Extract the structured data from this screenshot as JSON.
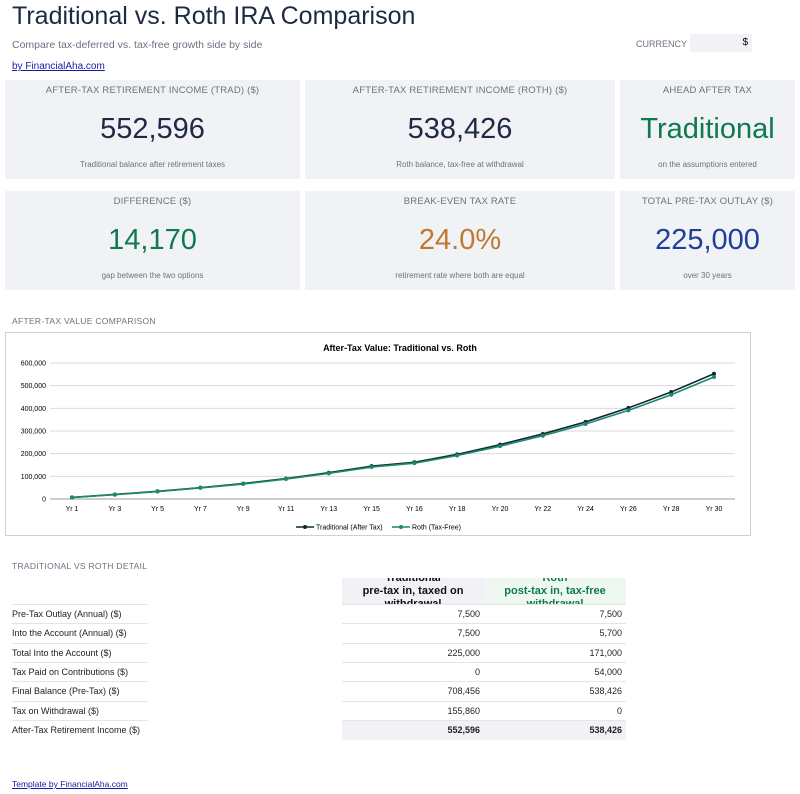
{
  "header": {
    "title": "Traditional vs. Roth IRA Comparison",
    "subtitle": "Compare tax-deferred vs. tax-free growth side by side",
    "link": "by FinancialAha.com",
    "currency_label": "CURRENCY",
    "currency_value": "$"
  },
  "cards": [
    {
      "label": "AFTER-TAX RETIREMENT INCOME (TRAD) ($)",
      "value": "552,596",
      "note": "Traditional balance after retirement taxes",
      "color": "#1e2a44"
    },
    {
      "label": "AFTER-TAX RETIREMENT INCOME (ROTH) ($)",
      "value": "538,426",
      "note": "Roth balance, tax-free at withdrawal",
      "color": "#1e2a44"
    },
    {
      "label": "AHEAD AFTER TAX",
      "value": "Traditional",
      "note": "on the assumptions entered",
      "color": "#0e7a4e"
    },
    {
      "label": "DIFFERENCE ($)",
      "value": "14,170",
      "note": "gap between the two options",
      "color": "#0e7a4e"
    },
    {
      "label": "BREAK-EVEN TAX RATE",
      "value": "24.0%",
      "note": "retirement rate where both are equal",
      "color": "#c07a30"
    },
    {
      "label": "TOTAL PRE-TAX OUTLAY ($)",
      "value": "225,000",
      "note": "over 30 years",
      "color": "#1f3f9a"
    }
  ],
  "chart_section": "AFTER-TAX VALUE COMPARISON",
  "chart_data": {
    "type": "line",
    "title": "After-Tax Value: Traditional vs. Roth",
    "categories": [
      "Yr 1",
      "Yr 3",
      "Yr 5",
      "Yr 7",
      "Yr 9",
      "Yr 11",
      "Yr 13",
      "Yr 15",
      "Yr 16",
      "Yr 18",
      "Yr 20",
      "Yr 22",
      "Yr 24",
      "Yr 26",
      "Yr 28",
      "Yr 30"
    ],
    "series": [
      {
        "name": "Traditional (After Tax)",
        "color": "#0d2b35",
        "values": [
          7000,
          20000,
          34000,
          50000,
          68000,
          90000,
          116000,
          145000,
          162000,
          197000,
          240000,
          287000,
          340000,
          402000,
          472000,
          552596
        ]
      },
      {
        "name": "Roth (Tax-Free)",
        "color": "#1a8a6a",
        "values": [
          6800,
          19000,
          33000,
          49000,
          66000,
          88000,
          113000,
          141000,
          158000,
          192000,
          233000,
          279000,
          331000,
          391000,
          460000,
          538426
        ]
      }
    ],
    "ylim": [
      0,
      600000
    ],
    "yticks": [
      0,
      {
        "value": 100000,
        "label": "100,000"
      },
      {
        "value": 200000,
        "label": "200,000"
      },
      {
        "value": 300000,
        "label": "300,000"
      },
      {
        "value": 400000,
        "label": "400,000"
      },
      {
        "value": 500000,
        "label": "500,000"
      },
      {
        "value": 600000,
        "label": "600,000"
      }
    ],
    "grid": true,
    "legend": "bottom"
  },
  "table": {
    "section": "TRADITIONAL VS ROTH DETAIL",
    "headers": [
      [
        "Traditional",
        "pre-tax in, taxed on withdrawal"
      ],
      [
        "Roth",
        "post-tax in, tax-free withdrawal"
      ]
    ],
    "rows": [
      [
        "Pre-Tax Outlay (Annual) ($)",
        "7,500",
        "7,500"
      ],
      [
        "Into the Account (Annual) ($)",
        "7,500",
        "5,700"
      ],
      [
        "Total Into the Account ($)",
        "225,000",
        "171,000"
      ],
      [
        "Tax Paid on Contributions ($)",
        "0",
        "54,000"
      ],
      [
        "Final Balance (Pre-Tax) ($)",
        "708,456",
        "538,426"
      ],
      [
        "Tax on Withdrawal ($)",
        "155,860",
        "0"
      ],
      [
        "After-Tax Retirement Income ($)",
        "552,596",
        "538,426"
      ]
    ]
  },
  "footer": "Template by FinancialAha.com"
}
